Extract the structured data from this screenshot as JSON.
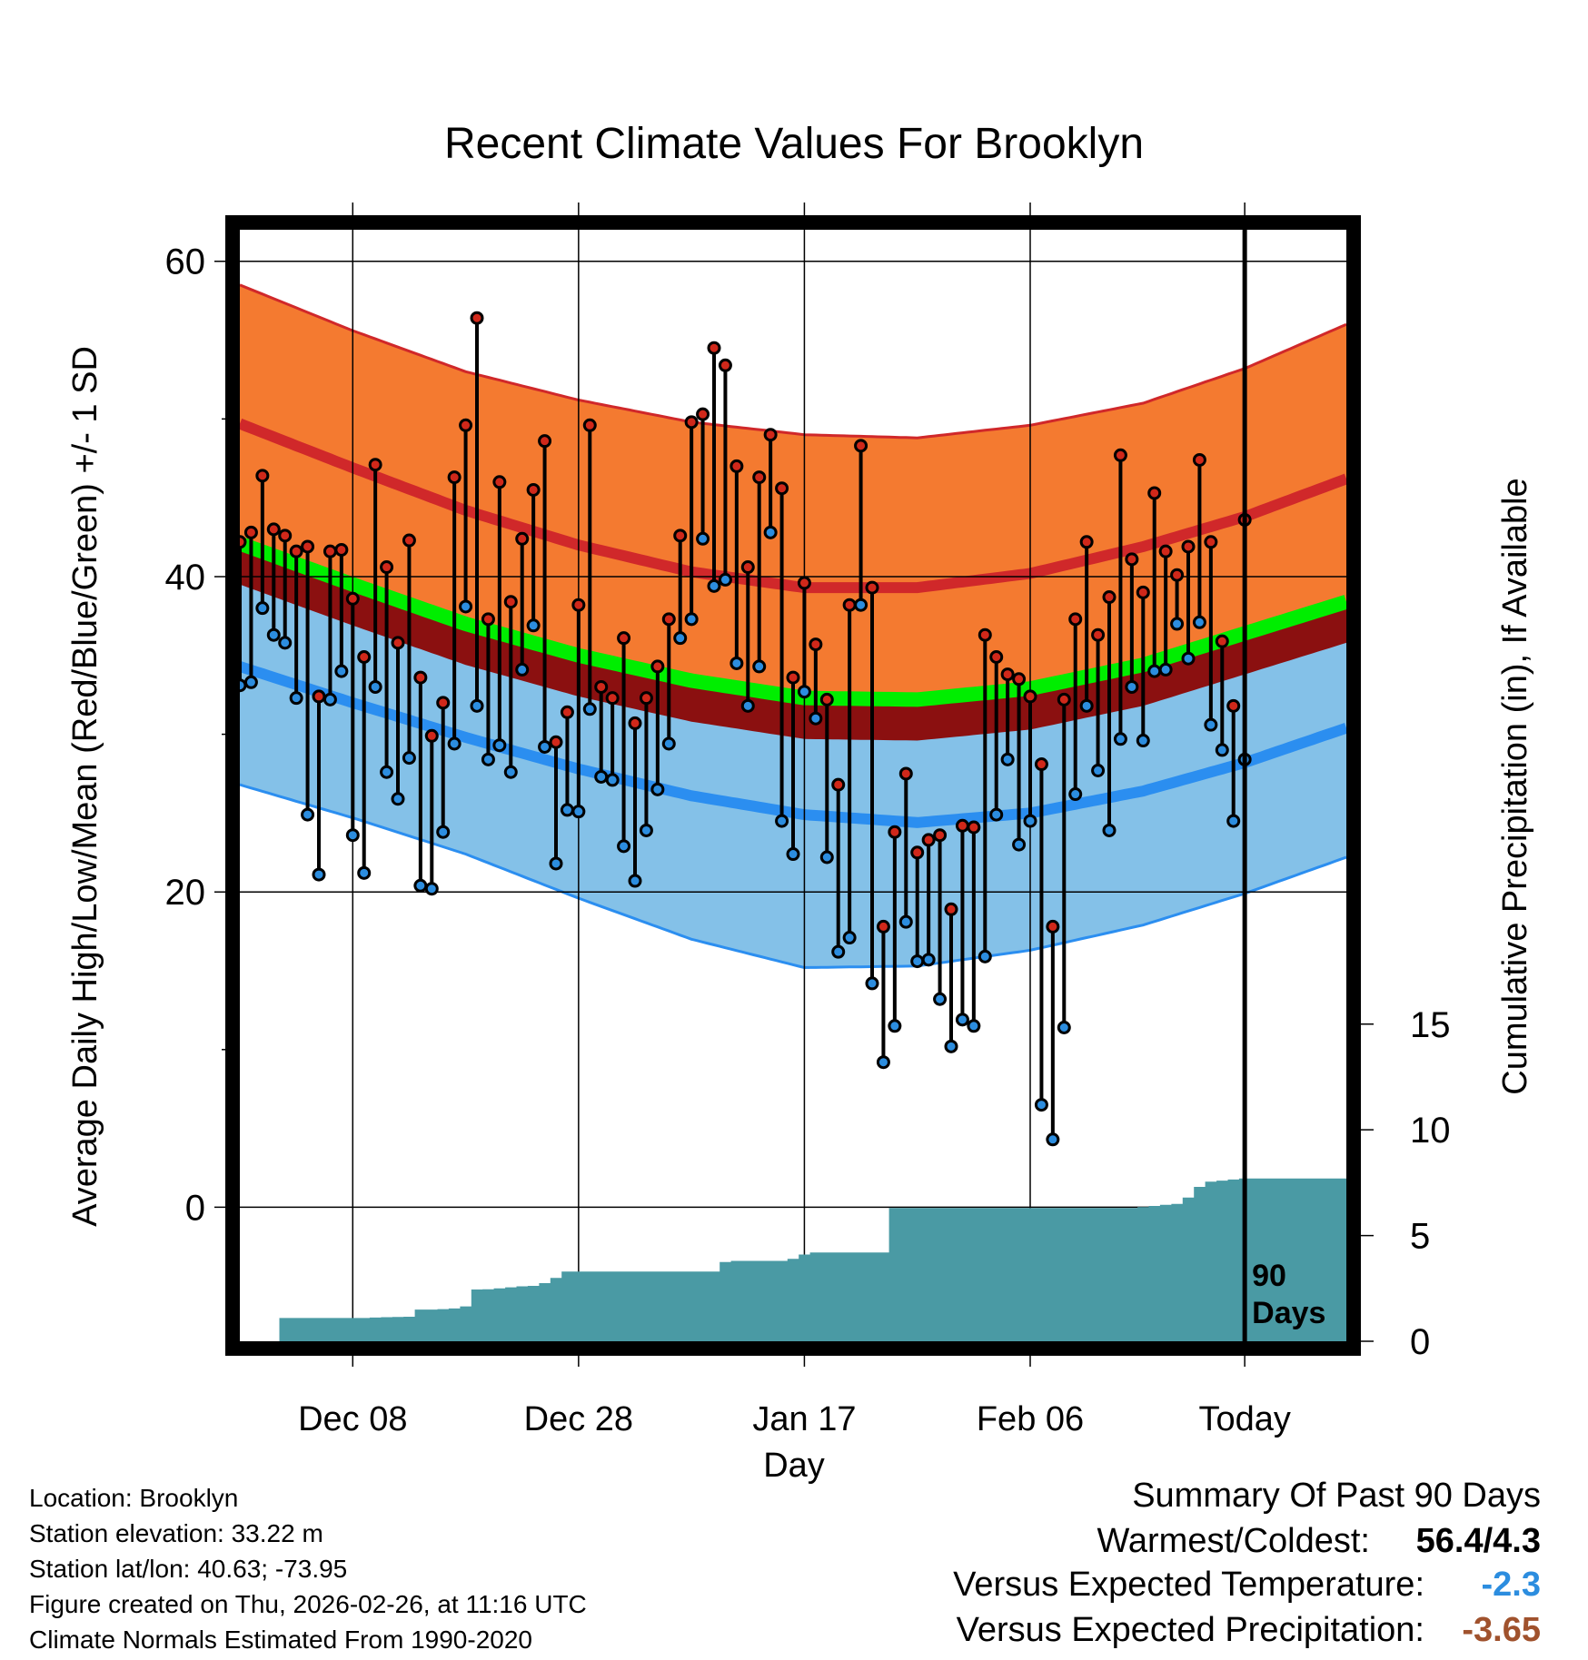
{
  "chart_data": {
    "type": "line",
    "title": "Recent Climate Values For Brooklyn",
    "xlabel": "Day",
    "ylabel": "Average Daily High/Low/Mean (Red/Blue/Green) +/- 1 SD",
    "y2label": "Cumulative Precipitation (in), If Available",
    "x_range_days": [
      -89,
      9
    ],
    "ylim": [
      -8.5,
      62
    ],
    "y_ticks": [
      0,
      20,
      40,
      60
    ],
    "y_minor_ticks": [
      10,
      30,
      50
    ],
    "y2_ticks": [
      0,
      5,
      10,
      15
    ],
    "y2_zero_at_temp": -8.5,
    "y2_units_per_temp_degree": 0.7457,
    "x_ticks": [
      {
        "day": -79,
        "label": "Dec 08"
      },
      {
        "day": -59,
        "label": "Dec 28"
      },
      {
        "day": -39,
        "label": "Jan 17"
      },
      {
        "day": -19,
        "label": "Feb 06"
      },
      {
        "day": 0,
        "label": "Today"
      }
    ],
    "today_marker_label_line1": "90",
    "today_marker_label_line2": "Days",
    "normals": {
      "day": [
        -89,
        -79,
        -69,
        -59,
        -49,
        -39,
        -29,
        -19,
        -9,
        0,
        9
      ],
      "high_mean": [
        49.7,
        46.9,
        44.2,
        42.0,
        40.3,
        39.3,
        39.3,
        40.2,
        41.9,
        43.8,
        46.2
      ],
      "high_sd_upper": [
        58.5,
        55.6,
        53.0,
        51.2,
        49.8,
        49.0,
        48.8,
        49.6,
        51.0,
        53.2,
        56.0
      ],
      "mean": [
        42.1,
        39.5,
        37.0,
        35.0,
        33.4,
        32.3,
        32.2,
        32.9,
        34.4,
        36.4,
        38.4
      ],
      "low_mean": [
        34.3,
        32.0,
        29.8,
        27.8,
        26.1,
        24.9,
        24.4,
        25.0,
        26.4,
        28.2,
        30.4
      ],
      "low_sd_lower": [
        26.8,
        24.7,
        22.4,
        19.6,
        17.0,
        15.2,
        15.3,
        16.3,
        17.9,
        19.9,
        22.2
      ]
    },
    "series": [
      {
        "name": "Daily High",
        "color": "#d0281a",
        "start_day": -89,
        "values": [
          42.2,
          42.8,
          46.4,
          43.0,
          42.6,
          41.6,
          41.9,
          32.4,
          41.6,
          41.7,
          38.6,
          34.9,
          47.1,
          40.6,
          35.8,
          42.3,
          33.6,
          29.9,
          32.0,
          46.3,
          49.6,
          56.4,
          37.3,
          46.0,
          38.4,
          42.4,
          45.5,
          48.6,
          29.5,
          31.4,
          38.2,
          49.6,
          33.0,
          32.3,
          36.1,
          30.7,
          32.3,
          34.3,
          37.3,
          42.6,
          49.8,
          50.3,
          54.5,
          53.4,
          47.0,
          40.6,
          46.3,
          49.0,
          45.6,
          33.6,
          39.6,
          35.7,
          32.2,
          26.8,
          38.2,
          48.3,
          39.3,
          17.8,
          23.8,
          27.5,
          22.5,
          23.3,
          23.6,
          18.9,
          24.2,
          24.1,
          36.3,
          34.9,
          33.8,
          33.5,
          32.4,
          28.1,
          17.8,
          32.2,
          37.3,
          42.2,
          36.3,
          38.7,
          47.7,
          41.1,
          39.0,
          45.3,
          41.6,
          40.1,
          41.9,
          47.4,
          42.2,
          35.9,
          31.8,
          43.6
        ]
      },
      {
        "name": "Daily Low",
        "color": "#2c8ddf",
        "start_day": -89,
        "values": [
          33.1,
          33.3,
          38.0,
          36.3,
          35.8,
          32.3,
          24.9,
          21.1,
          32.2,
          34.0,
          23.6,
          21.2,
          33.0,
          27.6,
          25.9,
          28.5,
          20.4,
          20.2,
          23.8,
          29.4,
          38.1,
          31.8,
          28.4,
          29.3,
          27.6,
          34.1,
          36.9,
          29.2,
          21.8,
          25.2,
          25.1,
          31.6,
          27.3,
          27.1,
          22.9,
          20.7,
          23.9,
          26.5,
          29.4,
          36.1,
          37.3,
          42.4,
          39.4,
          39.8,
          34.5,
          31.8,
          34.3,
          42.8,
          24.5,
          22.4,
          32.7,
          31.0,
          22.2,
          16.2,
          17.1,
          38.2,
          14.2,
          9.2,
          11.5,
          18.1,
          15.6,
          15.7,
          13.2,
          10.2,
          11.9,
          11.5,
          15.9,
          24.9,
          28.4,
          23.0,
          24.5,
          6.5,
          4.3,
          11.4,
          26.2,
          31.8,
          27.7,
          23.9,
          29.7,
          33.0,
          29.6,
          34.0,
          34.1,
          37.0,
          34.8,
          37.1,
          30.6,
          29.0,
          24.5,
          28.4
        ]
      },
      {
        "name": "Cumulative Precipitation",
        "color": "#4a9aa4",
        "start_day": -89,
        "values": [
          0.0,
          0.0,
          0.0,
          0.0,
          1.1,
          1.1,
          1.1,
          1.1,
          1.1,
          1.1,
          1.1,
          1.1,
          1.12,
          1.14,
          1.15,
          1.16,
          1.5,
          1.5,
          1.52,
          1.55,
          1.65,
          2.45,
          2.46,
          2.5,
          2.55,
          2.6,
          2.62,
          2.75,
          3.0,
          3.3,
          3.3,
          3.3,
          3.3,
          3.3,
          3.3,
          3.3,
          3.3,
          3.3,
          3.3,
          3.3,
          3.3,
          3.3,
          3.3,
          3.75,
          3.8,
          3.8,
          3.8,
          3.8,
          3.8,
          3.9,
          4.1,
          4.2,
          4.2,
          4.2,
          4.2,
          4.2,
          4.2,
          4.2,
          6.3,
          6.3,
          6.3,
          6.3,
          6.3,
          6.3,
          6.3,
          6.3,
          6.3,
          6.3,
          6.3,
          6.3,
          6.3,
          6.3,
          6.3,
          6.3,
          6.3,
          6.3,
          6.3,
          6.3,
          6.3,
          6.3,
          6.35,
          6.4,
          6.45,
          6.5,
          6.8,
          7.3,
          7.55,
          7.6,
          7.65,
          7.7,
          7.7,
          7.7,
          7.7,
          7.7,
          7.7,
          7.7,
          7.7,
          7.7,
          7.7,
          7.7
        ]
      }
    ]
  },
  "info": {
    "location": "Location: Brooklyn",
    "elevation": "Station elevation: 33.22 m",
    "latlon": "Station lat/lon: 40.63; -73.95",
    "created": "Figure created on Thu, 2026-02-26, at 11:16 UTC",
    "normals": "Climate Normals Estimated From 1990-2020"
  },
  "summary": {
    "title": "Summary Of Past 90 Days",
    "warmest_label": "Warmest/Coldest:",
    "warmest_value": "56.4/4.3",
    "temp_label": "Versus Expected Temperature:",
    "temp_value": "-2.3",
    "temp_color": "#2c8ddf",
    "precip_label": "Versus Expected Precipitation:",
    "precip_value": "-3.65",
    "precip_color": "#a0522d"
  },
  "colors": {
    "high_band": "#f47a30",
    "high_line": "#d0282a",
    "low_band": "#84c1e8",
    "low_line": "#2b8ef0",
    "mean_band": "#00ee00",
    "mean_line": "#8b1010",
    "precip": "#4a9aa4"
  }
}
